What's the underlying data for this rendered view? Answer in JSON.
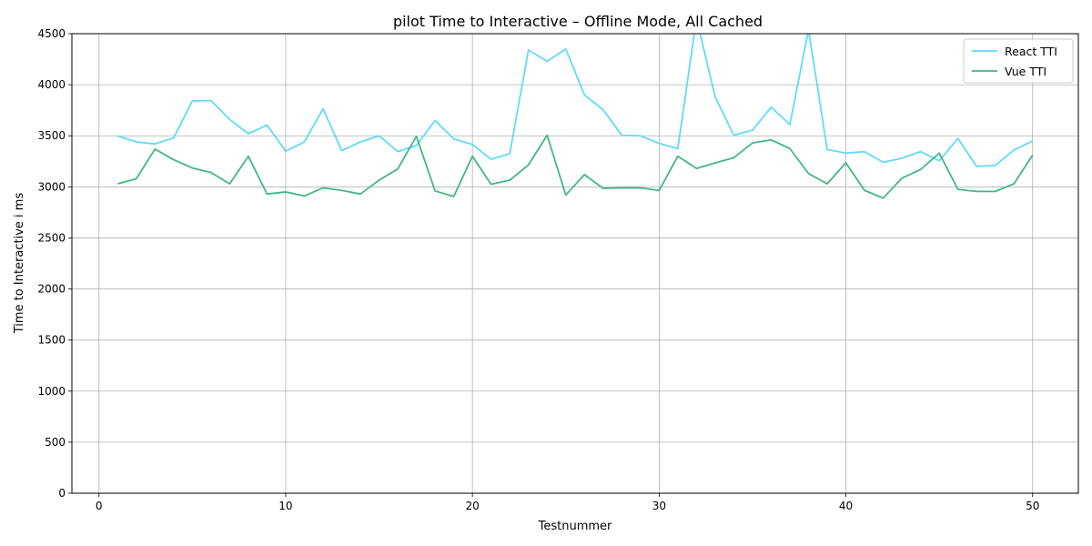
{
  "chart_data": {
    "type": "line",
    "title": "pilot Time to Interactive  – Offline Mode, All Cached",
    "xlabel": "Testnummer",
    "ylabel": "Time to Interactive  i ms",
    "xlim": [
      -1.45,
      52.45
    ],
    "ylim": [
      0,
      4500
    ],
    "xticks": [
      0,
      10,
      20,
      30,
      40,
      50
    ],
    "yticks": [
      0,
      500,
      1000,
      1500,
      2000,
      2500,
      3000,
      3500,
      4000,
      4500
    ],
    "grid": true,
    "legend_position": "top-right",
    "x": [
      1,
      2,
      3,
      4,
      5,
      6,
      7,
      8,
      9,
      10,
      11,
      12,
      13,
      14,
      15,
      16,
      17,
      18,
      19,
      20,
      21,
      22,
      23,
      24,
      25,
      26,
      27,
      28,
      29,
      30,
      31,
      32,
      33,
      34,
      35,
      36,
      37,
      38,
      39,
      40,
      41,
      42,
      43,
      44,
      45,
      46,
      47,
      48,
      49,
      50
    ],
    "series": [
      {
        "name": "React TTI",
        "color": "#61dafb",
        "values": [
          3500,
          3440,
          3420,
          3480,
          3840,
          3845,
          3660,
          3520,
          3605,
          3350,
          3440,
          3765,
          3355,
          3440,
          3500,
          3345,
          3405,
          3650,
          3470,
          3415,
          3270,
          3325,
          4340,
          4230,
          4350,
          3900,
          3755,
          3505,
          3500,
          3425,
          3375,
          4650,
          3880,
          3505,
          3555,
          3780,
          3610,
          4540,
          3365,
          3330,
          3345,
          3240,
          3280,
          3345,
          3255,
          3475,
          3200,
          3210,
          3360,
          3450
        ]
      },
      {
        "name": "Vue TTI",
        "color": "#42b883",
        "values": [
          3030,
          3080,
          3370,
          3265,
          3185,
          3140,
          3030,
          3300,
          2930,
          2950,
          2910,
          2990,
          2965,
          2930,
          3065,
          3175,
          3495,
          2960,
          2905,
          3300,
          3025,
          3065,
          3215,
          3505,
          2920,
          3120,
          2985,
          2990,
          2990,
          2965,
          3300,
          3180,
          3235,
          3285,
          3430,
          3460,
          3375,
          3130,
          3030,
          3235,
          2965,
          2890,
          3085,
          3170,
          3330,
          2975,
          2955,
          2955,
          3030,
          3310
        ]
      }
    ]
  }
}
